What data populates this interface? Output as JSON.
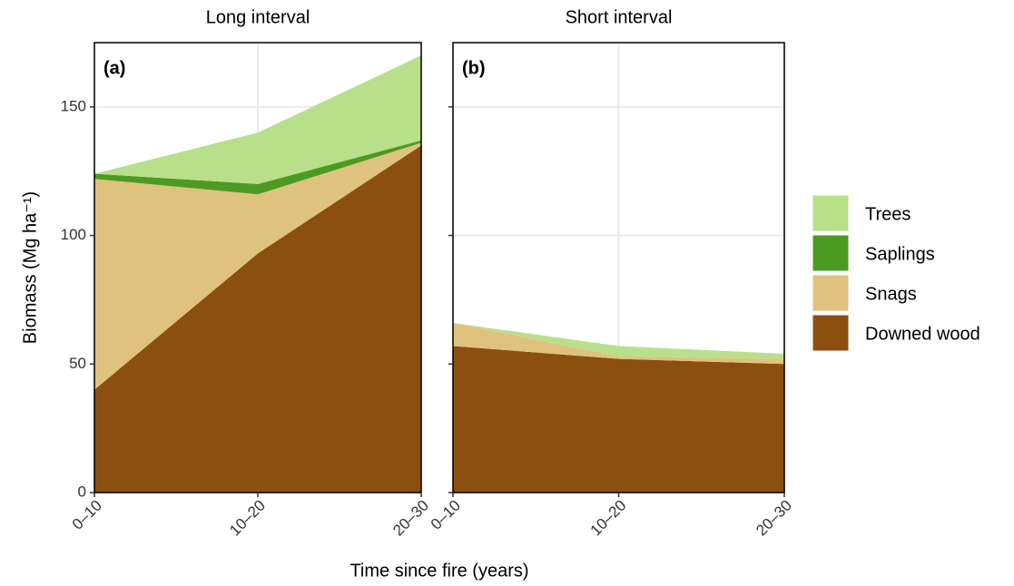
{
  "chart_data": [
    {
      "type": "area",
      "stacked": true,
      "title": "Long interval",
      "label": "(a)",
      "xlabel": "Time since fire (years)",
      "ylabel": "Biomass (Mg ha⁻¹)",
      "categories": [
        "0–10",
        "10–20",
        "20–30"
      ],
      "ylim": [
        0,
        175
      ],
      "yticks": [
        0,
        50,
        100,
        150
      ],
      "grid": true,
      "series": [
        {
          "name": "Downed wood",
          "color": "#8b500f",
          "values": [
            40,
            93,
            135
          ]
        },
        {
          "name": "Snags",
          "color": "#e0c27f",
          "values": [
            82,
            23,
            1
          ]
        },
        {
          "name": "Saplings",
          "color": "#4d9a21",
          "values": [
            2,
            4,
            1
          ]
        },
        {
          "name": "Trees",
          "color": "#b8e08a",
          "values": [
            0,
            20,
            33
          ]
        }
      ]
    },
    {
      "type": "area",
      "stacked": true,
      "title": "Short interval",
      "label": "(b)",
      "categories": [
        "0–10",
        "10–20",
        "20–30"
      ],
      "ylim": [
        0,
        175
      ],
      "yticks": [
        0,
        50,
        100,
        150
      ],
      "grid": true,
      "series": [
        {
          "color": "#8b500f",
          "values": [
            57,
            52,
            50
          ]
        },
        {
          "color": "#e0c27f",
          "values": [
            9,
            1,
            2
          ]
        },
        {
          "color": "#4d9a21",
          "values": [
            0,
            0,
            0
          ]
        },
        {
          "color": "#b8e08a",
          "values": [
            0,
            4,
            2
          ]
        }
      ]
    }
  ]
}
